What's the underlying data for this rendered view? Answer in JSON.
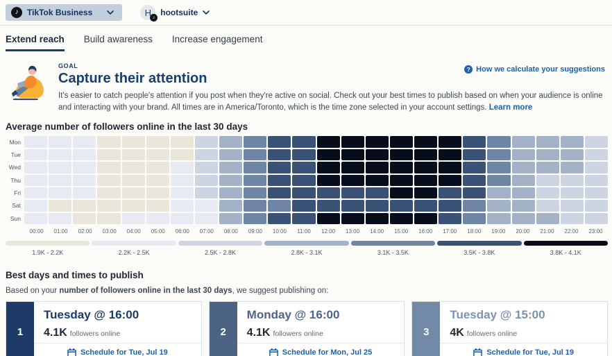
{
  "topbar": {
    "account_label": "TikTok Business",
    "user_initial": "H",
    "user_name": "hootsuite"
  },
  "icons": {
    "tiktok_glyph": "♪",
    "help_glyph": "?"
  },
  "tabs": [
    {
      "label": "Extend reach",
      "active": true
    },
    {
      "label": "Build awareness",
      "active": false
    },
    {
      "label": "Increase engagement",
      "active": false
    }
  ],
  "goal": {
    "eyebrow": "GOAL",
    "title": "Capture their attention",
    "description": "It's easier to catch people's attention if you post when they're active on social. Check out your best times to publish based on when your audience is online and interacting with your brand. All times are in America/Toronto, which is the time zone selected in your account settings.",
    "learn_more": "Learn more",
    "help_link": "How we calculate your suggestions"
  },
  "chart_data": {
    "type": "heatmap",
    "title": "Average number of followers online in the last 30 days",
    "rows": [
      "Mon",
      "Tue",
      "Wed",
      "Thu",
      "Fri",
      "Sat",
      "Sun"
    ],
    "columns": [
      "00:00",
      "01:00",
      "02:00",
      "03:00",
      "04:00",
      "05:00",
      "06:00",
      "07:00",
      "08:00",
      "09:00",
      "10:00",
      "11:00",
      "12:00",
      "13:00",
      "14:00",
      "15:00",
      "16:00",
      "17:00",
      "18:00",
      "19:00",
      "20:00",
      "21:00",
      "22:00",
      "23:00"
    ],
    "legend": [
      {
        "label": "1.9K - 2.2K",
        "color": "#ebe6da",
        "dotted": false
      },
      {
        "label": "2.2K - 2.5K",
        "color": "#e7eaf2",
        "dotted": true
      },
      {
        "label": "2.5K - 2.8K",
        "color": "#ccd5e1",
        "dotted": false
      },
      {
        "label": "2.8K - 3.1K",
        "color": "#a4b2c8",
        "dotted": false
      },
      {
        "label": "3.1K - 3.5K",
        "color": "#6e85a5",
        "dotted": false
      },
      {
        "label": "3.5K - 3.8K",
        "color": "#3b5277",
        "dotted": false
      },
      {
        "label": "3.8K - 4.1K",
        "color": "#070d1a",
        "dotted": false
      }
    ],
    "values": [
      [
        1,
        1,
        1,
        0,
        0,
        0,
        0,
        2,
        3,
        4,
        5,
        5,
        6,
        6,
        6,
        6,
        6,
        6,
        5,
        4,
        3,
        3,
        3,
        2
      ],
      [
        1,
        1,
        1,
        0,
        0,
        0,
        0,
        2,
        3,
        4,
        5,
        5,
        6,
        6,
        6,
        6,
        6,
        6,
        5,
        4,
        3,
        3,
        3,
        2
      ],
      [
        1,
        1,
        1,
        0,
        0,
        0,
        1,
        2,
        3,
        4,
        5,
        5,
        6,
        6,
        6,
        6,
        6,
        6,
        5,
        4,
        3,
        3,
        3,
        2
      ],
      [
        1,
        1,
        1,
        0,
        0,
        0,
        1,
        2,
        3,
        4,
        5,
        5,
        6,
        6,
        6,
        6,
        6,
        6,
        5,
        4,
        3,
        2,
        2,
        2
      ],
      [
        1,
        1,
        1,
        0,
        0,
        0,
        1,
        2,
        3,
        4,
        5,
        5,
        5,
        5,
        5,
        6,
        6,
        5,
        5,
        3,
        3,
        2,
        2,
        2
      ],
      [
        1,
        0,
        0,
        0,
        0,
        0,
        1,
        1,
        3,
        4,
        4,
        5,
        5,
        5,
        5,
        5,
        5,
        5,
        4,
        3,
        3,
        2,
        2,
        2
      ],
      [
        1,
        1,
        0,
        0,
        1,
        1,
        1,
        1,
        3,
        4,
        5,
        5,
        6,
        6,
        6,
        6,
        6,
        5,
        4,
        3,
        3,
        3,
        2,
        2
      ]
    ]
  },
  "suggestions": {
    "title": "Best days and times to publish",
    "intro_prefix": "Based on your ",
    "intro_bold": "number of followers online in the last 30 days",
    "intro_suffix": ", we suggest publishing on:",
    "cards": [
      {
        "rank": "1",
        "title": "Tuesday @ 16:00",
        "count": "4.1K",
        "count_suffix": "followers online",
        "cta": "Schedule for Tue, Jul 19",
        "accent": "#1d3b66",
        "title_color": "#1d3b66"
      },
      {
        "rank": "2",
        "title": "Monday @ 16:00",
        "count": "4.1K",
        "count_suffix": "followers online",
        "cta": "Schedule for Mon, Jul 25",
        "accent": "#4d6384",
        "title_color": "#4d6486"
      },
      {
        "rank": "3",
        "title": "Tuesday @ 15:00",
        "count": "4K",
        "count_suffix": "followers online",
        "cta": "Schedule for Tue, Jul 19",
        "accent": "#7389a8",
        "title_color": "#7d92af"
      }
    ]
  }
}
